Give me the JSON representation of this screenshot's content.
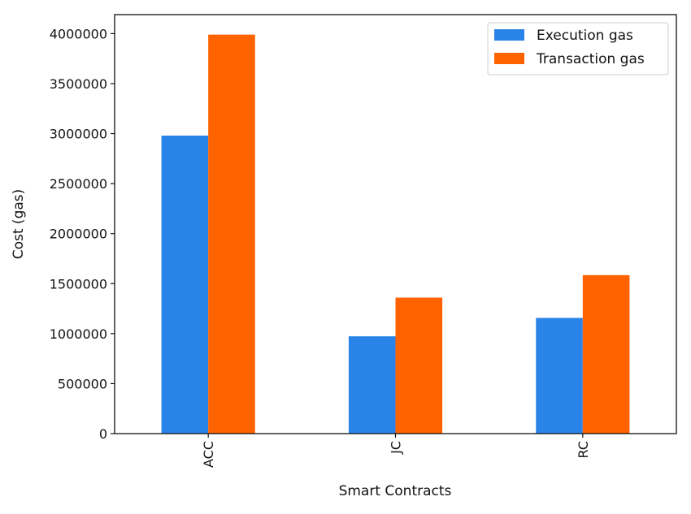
{
  "chart_data": {
    "type": "bar",
    "title": "",
    "xlabel": "Smart Contracts",
    "ylabel": "Cost (gas)",
    "categories": [
      "ACC",
      "JC",
      "RC"
    ],
    "series": [
      {
        "name": "Execution gas",
        "values": [
          2980000,
          973000,
          1157000
        ],
        "color": "#2a84e8"
      },
      {
        "name": "Transaction gas",
        "values": [
          3990000,
          1360000,
          1585000
        ],
        "color": "#ff6300"
      }
    ],
    "ylim": [
      0,
      4190000
    ],
    "yticks": [
      0,
      500000,
      1000000,
      1500000,
      2000000,
      2500000,
      3000000,
      3500000,
      4000000
    ],
    "ytick_labels": [
      "0",
      "500000",
      "1000000",
      "1500000",
      "2000000",
      "2500000",
      "3000000",
      "3500000",
      "4000000"
    ],
    "xtick_rotation": "vertical",
    "grid": false,
    "legend": "top-right"
  }
}
